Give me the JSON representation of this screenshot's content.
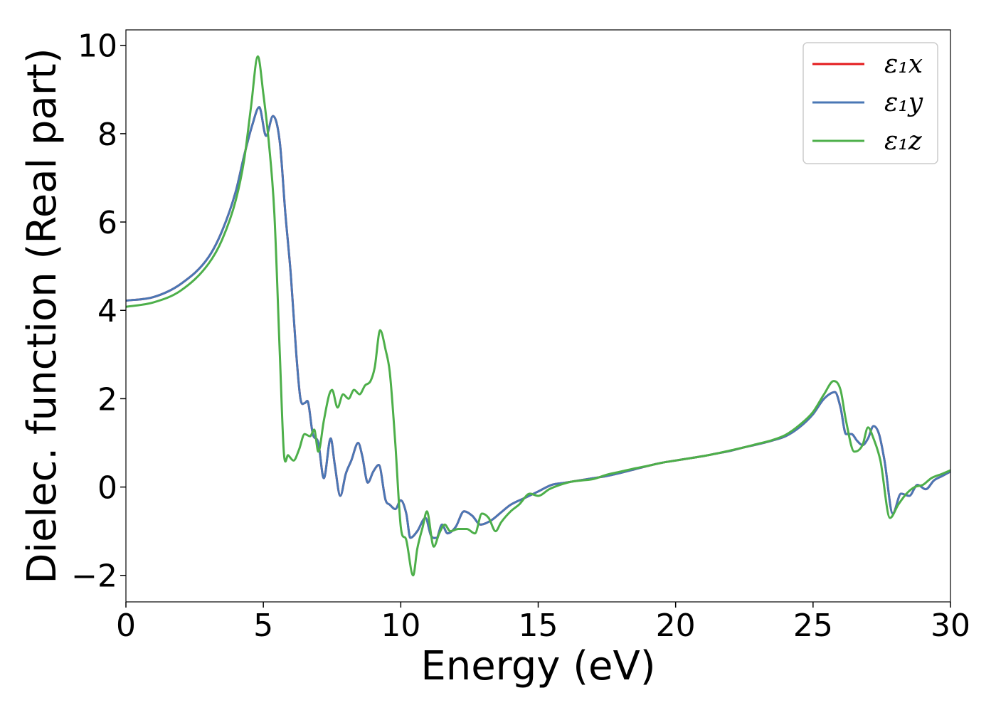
{
  "chart_data": {
    "type": "line",
    "title": "",
    "xlabel": "Energy (eV)",
    "ylabel": "Dielec. function (Real part)",
    "xlim": [
      0,
      30
    ],
    "ylim": [
      -2.6,
      10.35
    ],
    "xticks": [
      0,
      5,
      10,
      15,
      20,
      25,
      30
    ],
    "xtick_labels": [
      "0",
      "5",
      "10",
      "15",
      "20",
      "25",
      "30"
    ],
    "yticks": [
      -2,
      0,
      2,
      4,
      6,
      8,
      10
    ],
    "ytick_labels": [
      "−2",
      "0",
      "2",
      "4",
      "6",
      "8",
      "10"
    ],
    "grid": false,
    "legend_position": "top-right",
    "series": [
      {
        "name": "ε₁x",
        "color": "#e41a1c",
        "x": [
          0,
          1,
          2,
          3,
          3.5,
          4,
          4.3,
          4.6,
          4.85,
          5.1,
          5.35,
          5.6,
          5.8,
          6.0,
          6.2,
          6.35,
          6.5,
          6.6,
          6.8,
          7.0,
          7.2,
          7.45,
          7.6,
          7.8,
          8.0,
          8.2,
          8.45,
          8.6,
          8.8,
          9.0,
          9.2,
          9.45,
          9.6,
          9.8,
          10.0,
          10.2,
          10.35,
          10.6,
          10.9,
          11.1,
          11.3,
          11.5,
          11.7,
          12.0,
          12.3,
          12.6,
          12.9,
          13.3,
          13.6,
          14.0,
          14.5,
          15.0,
          15.5,
          16.0,
          16.5,
          17.0,
          17.5,
          18.0,
          18.5,
          19.0,
          19.5,
          20.0,
          20.5,
          21.0,
          21.5,
          22.0,
          22.5,
          23.0,
          23.5,
          24.0,
          24.5,
          25.0,
          25.4,
          25.8,
          26.0,
          26.2,
          26.4,
          26.6,
          26.8,
          27.0,
          27.2,
          27.4,
          27.6,
          27.9,
          28.2,
          28.5,
          28.8,
          29.1,
          29.4,
          29.7,
          30.0
        ],
        "y": [
          4.22,
          4.3,
          4.6,
          5.2,
          5.8,
          6.7,
          7.5,
          8.2,
          8.6,
          7.95,
          8.4,
          7.8,
          6.2,
          4.8,
          3.0,
          2.0,
          1.9,
          1.95,
          1.2,
          1.0,
          0.2,
          1.1,
          0.5,
          -0.2,
          0.3,
          0.6,
          1.0,
          0.7,
          0.1,
          0.35,
          0.5,
          -0.3,
          -0.4,
          -0.5,
          -0.3,
          -0.6,
          -1.15,
          -1.0,
          -0.7,
          -1.1,
          -1.15,
          -0.85,
          -1.05,
          -0.9,
          -0.55,
          -0.65,
          -0.85,
          -0.75,
          -0.6,
          -0.4,
          -0.25,
          -0.1,
          0.05,
          0.1,
          0.15,
          0.2,
          0.25,
          0.32,
          0.4,
          0.48,
          0.55,
          0.6,
          0.65,
          0.7,
          0.76,
          0.82,
          0.9,
          0.97,
          1.05,
          1.15,
          1.35,
          1.65,
          2.0,
          2.15,
          1.8,
          1.2,
          1.2,
          1.05,
          0.95,
          1.1,
          1.38,
          1.2,
          0.6,
          -0.6,
          -0.15,
          -0.2,
          0.05,
          -0.05,
          0.15,
          0.25,
          0.35
        ]
      },
      {
        "name": "ε₁y",
        "color": "#4a77b5",
        "x": [
          0,
          1,
          2,
          3,
          3.5,
          4,
          4.3,
          4.6,
          4.85,
          5.1,
          5.35,
          5.6,
          5.8,
          6.0,
          6.2,
          6.35,
          6.5,
          6.6,
          6.8,
          7.0,
          7.2,
          7.45,
          7.6,
          7.8,
          8.0,
          8.2,
          8.45,
          8.6,
          8.8,
          9.0,
          9.2,
          9.45,
          9.6,
          9.8,
          10.0,
          10.2,
          10.35,
          10.6,
          10.9,
          11.1,
          11.3,
          11.5,
          11.7,
          12.0,
          12.3,
          12.6,
          12.9,
          13.3,
          13.6,
          14.0,
          14.5,
          15.0,
          15.5,
          16.0,
          16.5,
          17.0,
          17.5,
          18.0,
          18.5,
          19.0,
          19.5,
          20.0,
          20.5,
          21.0,
          21.5,
          22.0,
          22.5,
          23.0,
          23.5,
          24.0,
          24.5,
          25.0,
          25.4,
          25.8,
          26.0,
          26.2,
          26.4,
          26.6,
          26.8,
          27.0,
          27.2,
          27.4,
          27.6,
          27.9,
          28.2,
          28.5,
          28.8,
          29.1,
          29.4,
          29.7,
          30.0
        ],
        "y": [
          4.22,
          4.3,
          4.6,
          5.2,
          5.8,
          6.7,
          7.5,
          8.2,
          8.6,
          7.95,
          8.4,
          7.8,
          6.2,
          4.8,
          3.0,
          2.0,
          1.9,
          1.95,
          1.2,
          1.0,
          0.2,
          1.1,
          0.5,
          -0.2,
          0.3,
          0.6,
          1.0,
          0.7,
          0.1,
          0.35,
          0.5,
          -0.3,
          -0.4,
          -0.5,
          -0.3,
          -0.6,
          -1.15,
          -1.0,
          -0.7,
          -1.1,
          -1.15,
          -0.85,
          -1.05,
          -0.9,
          -0.55,
          -0.65,
          -0.85,
          -0.75,
          -0.6,
          -0.4,
          -0.25,
          -0.1,
          0.05,
          0.1,
          0.15,
          0.2,
          0.25,
          0.32,
          0.4,
          0.48,
          0.55,
          0.6,
          0.65,
          0.7,
          0.76,
          0.82,
          0.9,
          0.97,
          1.05,
          1.15,
          1.35,
          1.65,
          2.0,
          2.15,
          1.8,
          1.2,
          1.2,
          1.05,
          0.95,
          1.1,
          1.38,
          1.2,
          0.6,
          -0.6,
          -0.15,
          -0.2,
          0.05,
          -0.05,
          0.15,
          0.25,
          0.35
        ]
      },
      {
        "name": "ε₁z",
        "color": "#4daf4a",
        "x": [
          0,
          1,
          2,
          3,
          3.5,
          4,
          4.3,
          4.55,
          4.8,
          5.0,
          5.2,
          5.4,
          5.6,
          5.75,
          5.9,
          6.1,
          6.3,
          6.5,
          6.7,
          6.85,
          7.0,
          7.2,
          7.4,
          7.5,
          7.7,
          7.9,
          8.1,
          8.3,
          8.5,
          8.7,
          8.9,
          9.05,
          9.25,
          9.45,
          9.6,
          9.8,
          10.0,
          10.2,
          10.45,
          10.6,
          10.8,
          10.95,
          11.2,
          11.4,
          11.6,
          11.8,
          12.1,
          12.4,
          12.7,
          12.95,
          13.2,
          13.45,
          13.65,
          14.0,
          14.3,
          14.7,
          15.0,
          15.4,
          15.8,
          16.2,
          16.6,
          17.0,
          17.5,
          18.0,
          18.5,
          19.0,
          19.5,
          20.0,
          20.5,
          21.0,
          21.5,
          22.0,
          22.5,
          23.0,
          23.5,
          24.0,
          24.5,
          25.0,
          25.4,
          25.75,
          26.0,
          26.2,
          26.5,
          26.8,
          27.0,
          27.2,
          27.45,
          27.8,
          28.1,
          28.4,
          28.7,
          29.0,
          29.3,
          29.7,
          30.0
        ],
        "y": [
          4.08,
          4.18,
          4.45,
          5.05,
          5.6,
          6.5,
          7.4,
          8.6,
          9.75,
          8.9,
          7.8,
          6.2,
          3.0,
          0.75,
          0.72,
          0.6,
          0.85,
          1.2,
          1.15,
          1.3,
          0.8,
          1.5,
          2.1,
          2.2,
          1.8,
          2.1,
          2.0,
          2.2,
          2.1,
          2.3,
          2.4,
          2.7,
          3.55,
          3.1,
          2.6,
          1.0,
          -0.9,
          -1.2,
          -2.0,
          -1.4,
          -0.9,
          -0.55,
          -1.35,
          -1.05,
          -0.85,
          -1.0,
          -0.95,
          -0.95,
          -1.05,
          -0.6,
          -0.7,
          -1.0,
          -0.8,
          -0.55,
          -0.4,
          -0.15,
          -0.2,
          -0.05,
          0.05,
          0.12,
          0.15,
          0.18,
          0.28,
          0.35,
          0.42,
          0.48,
          0.55,
          0.6,
          0.65,
          0.7,
          0.76,
          0.83,
          0.9,
          0.98,
          1.06,
          1.18,
          1.4,
          1.7,
          2.1,
          2.4,
          2.2,
          1.5,
          0.8,
          0.95,
          1.35,
          1.1,
          0.6,
          -0.7,
          -0.4,
          -0.15,
          0.0,
          0.05,
          0.2,
          0.3,
          0.38
        ]
      }
    ]
  }
}
